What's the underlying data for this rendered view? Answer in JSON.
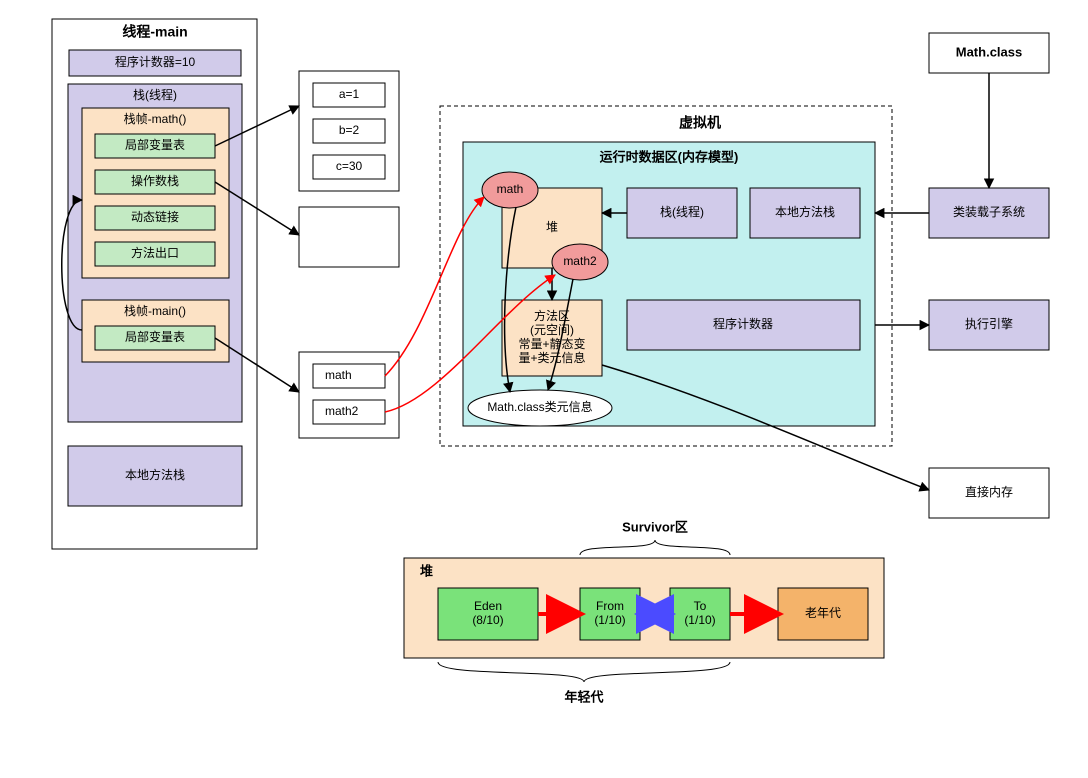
{
  "colors": {
    "lavender": "#d1cbea",
    "peach": "#fce2c5",
    "mint": "#c3eac3",
    "cyan": "#c2f0ef",
    "salmon": "#f19b9b",
    "orange": "#f4b36a",
    "green": "#7ae27a",
    "white": "#ffffff",
    "black": "#000000",
    "red": "#ff0000",
    "blue": "#4b4bff"
  },
  "thread_panel": {
    "title": "线程-main",
    "pc": "程序计数器=10",
    "stack_label": "栈(线程)",
    "frame_math": {
      "title": "栈帧-math()",
      "rows": [
        "局部变量表",
        "操作数栈",
        "动态链接",
        "方法出口"
      ]
    },
    "frame_main": {
      "title": "栈帧-main()",
      "rows": [
        "局部变量表"
      ]
    },
    "native_stack": "本地方法栈"
  },
  "side_boxes": {
    "vars": [
      "a=1",
      "b=2",
      "c=30"
    ],
    "empty": "",
    "refs": [
      "math",
      "math2"
    ]
  },
  "vm": {
    "title": "虚拟机",
    "runtime_title": "运行时数据区(内存模型)",
    "heap": "堆",
    "math": "math",
    "math2": "math2",
    "stack": "栈(线程)",
    "native": "本地方法栈",
    "method_area": "方法区\n(元空间)\n常量+静态变\n量+类元信息",
    "pc": "程序计数器",
    "class_info": "Math.class类元信息"
  },
  "right_col": {
    "class_file": "Math.class",
    "loader": "类装载子系统",
    "engine": "执行引擎",
    "direct_mem": "直接内存"
  },
  "heap_detail": {
    "title": "堆",
    "survivor": "Survivor区",
    "young": "年轻代",
    "eden": "Eden\n(8/10)",
    "from": "From\n(1/10)",
    "to": "To\n(1/10)",
    "old": "老年代"
  }
}
